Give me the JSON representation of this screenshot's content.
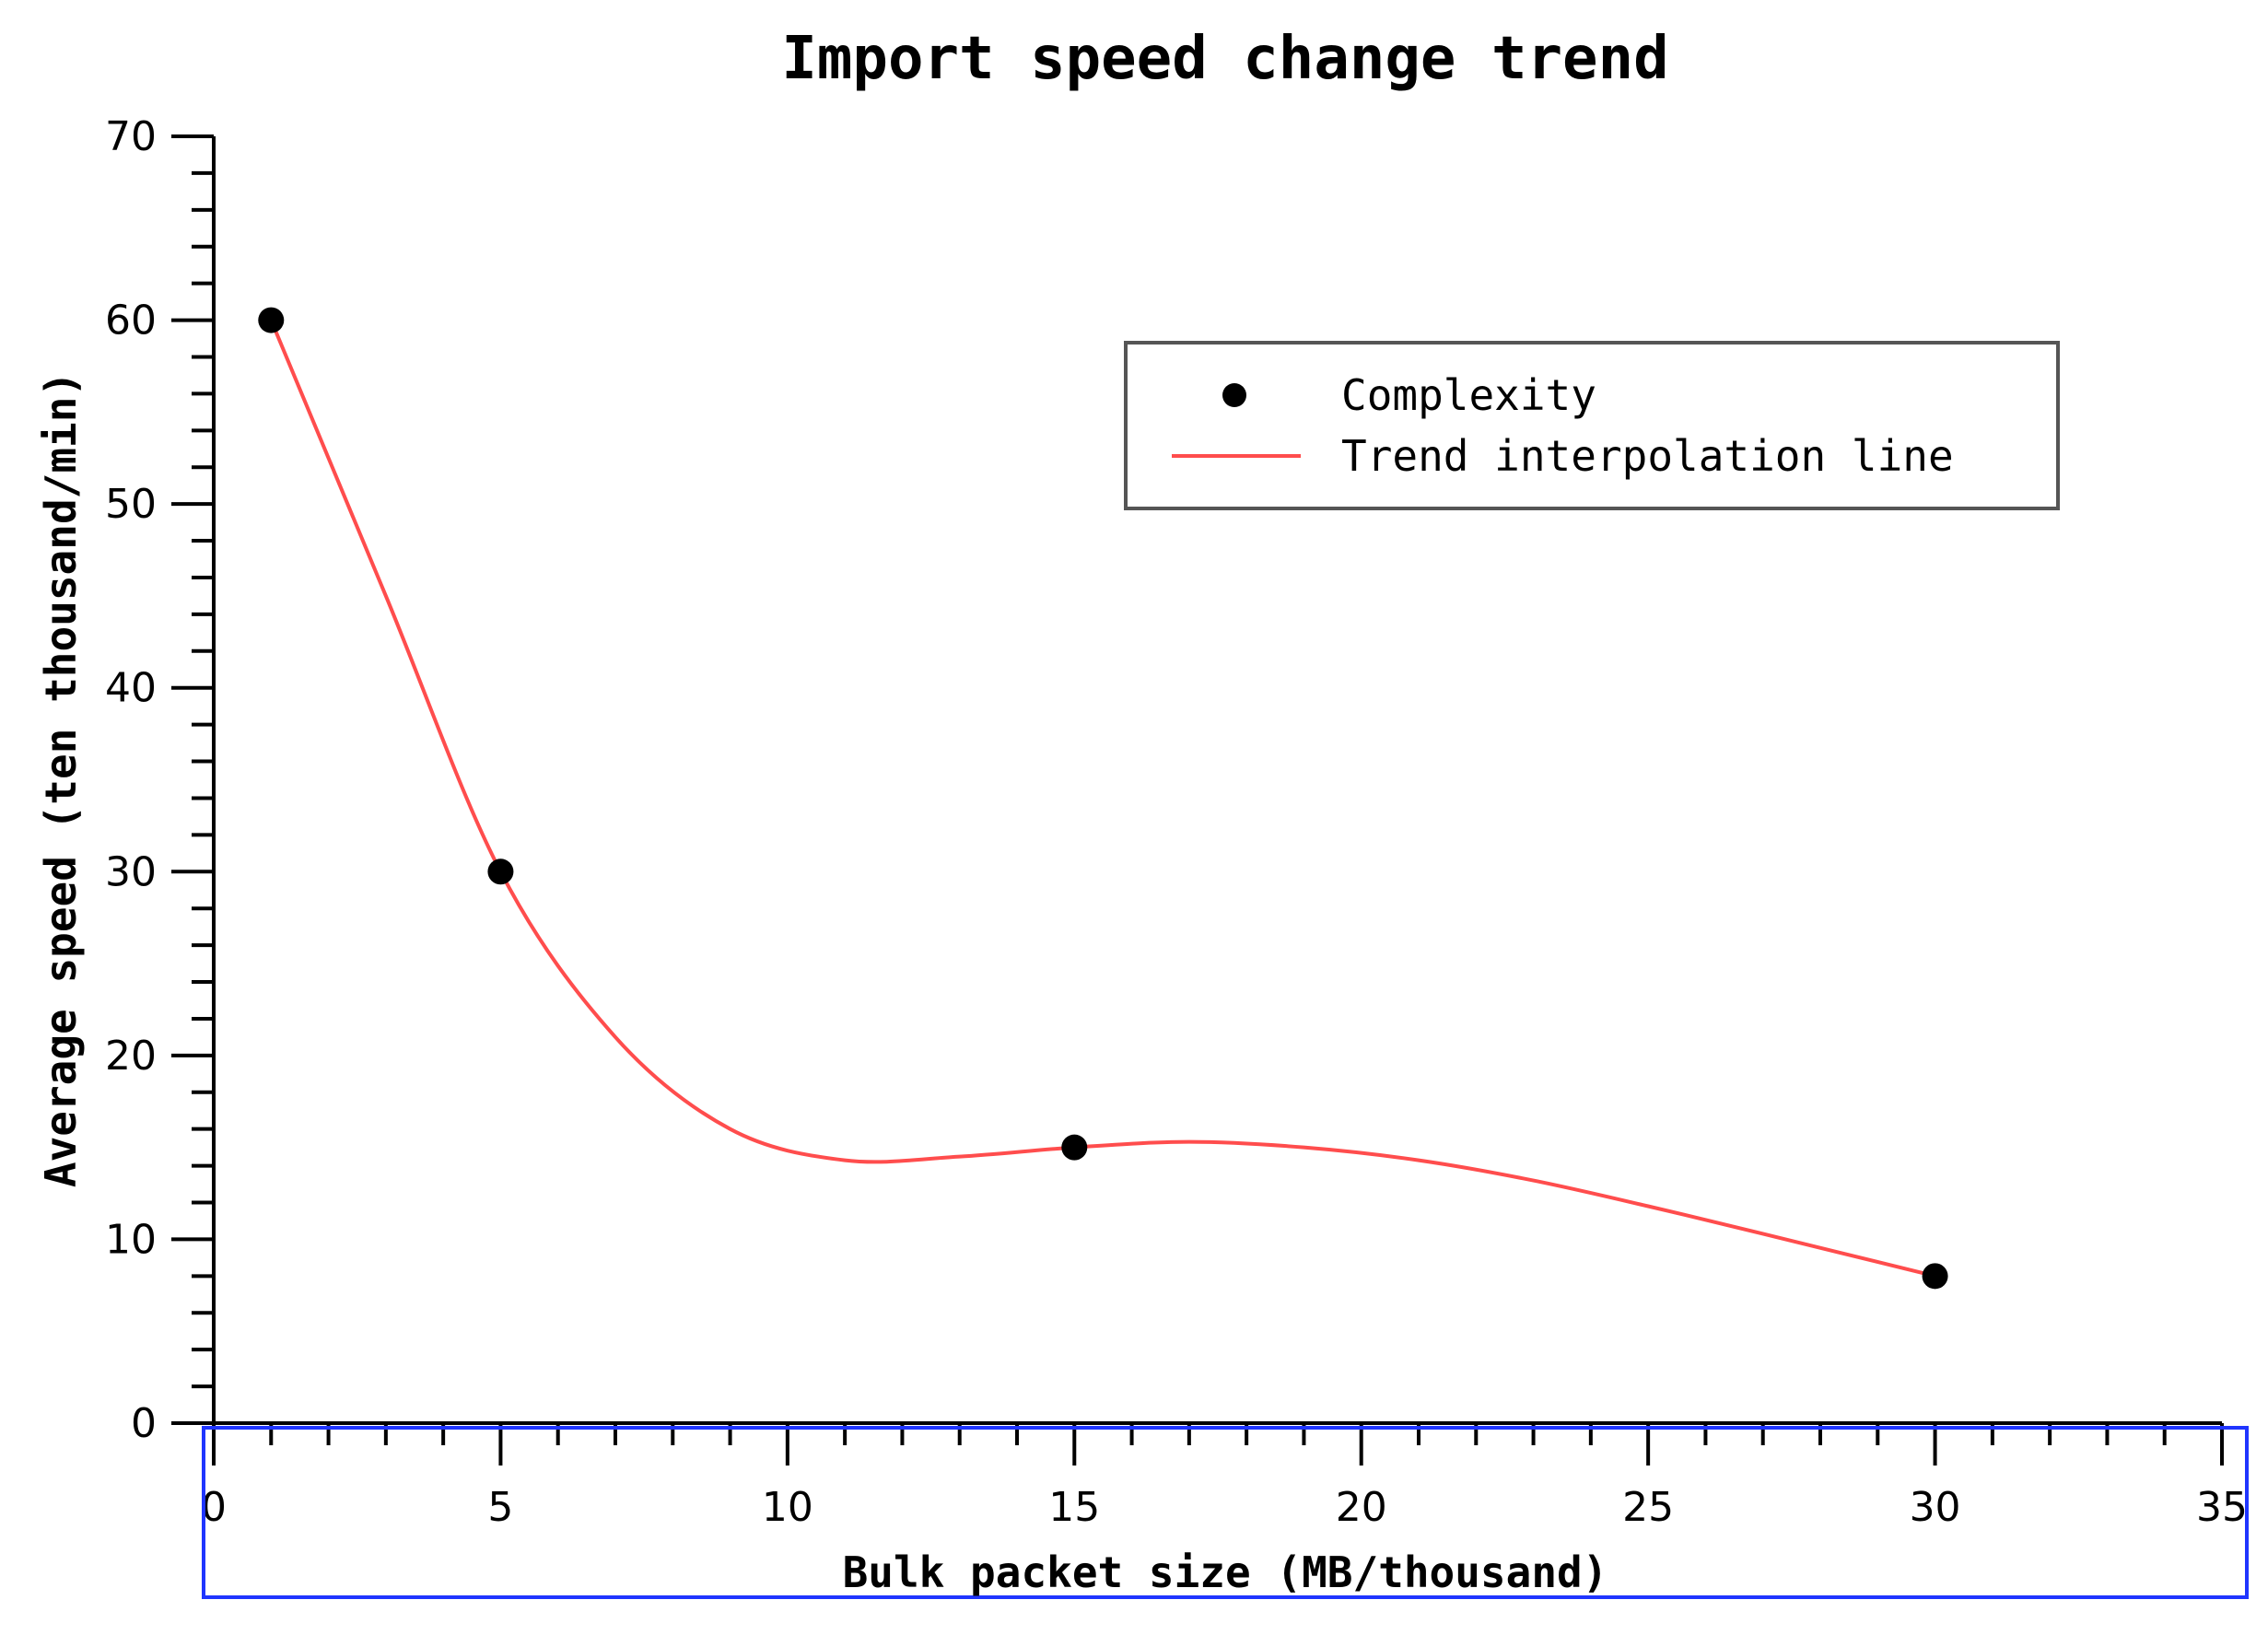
{
  "chart_data": {
    "type": "scatter",
    "title": "Import speed change trend",
    "xlabel": "Bulk packet size (MB/thousand)",
    "ylabel": "Average speed (ten thousand/min)",
    "xlim": [
      0,
      35
    ],
    "ylim": [
      0,
      70
    ],
    "x_ticks": [
      0,
      5,
      10,
      15,
      20,
      25,
      30,
      35
    ],
    "y_ticks": [
      0,
      10,
      20,
      30,
      40,
      50,
      60,
      70
    ],
    "x_tick_labels": [
      "0",
      "5",
      "10",
      "15",
      "20",
      "25",
      "30",
      "35"
    ],
    "y_tick_labels": [
      "0",
      "10",
      "20",
      "30",
      "40",
      "50",
      "60",
      "70"
    ],
    "grid": false,
    "legend": {
      "placement": "top-right",
      "entries": [
        "Complexity",
        "Trend interpolation line"
      ]
    },
    "series": [
      {
        "name": "Complexity",
        "kind": "points",
        "color": "#000000",
        "x": [
          1,
          5,
          15,
          30
        ],
        "y": [
          60,
          30,
          15,
          8
        ]
      },
      {
        "name": "Trend interpolation line",
        "kind": "line",
        "color": "#ff4d4d",
        "x": [
          1,
          3,
          5,
          7,
          9,
          11,
          13,
          15,
          17,
          19,
          21,
          23,
          25,
          27,
          30
        ],
        "y": [
          60,
          45,
          30,
          21,
          16,
          14.3,
          14.5,
          15,
          15.3,
          15,
          14.3,
          13.2,
          11.8,
          10.3,
          8
        ]
      }
    ]
  }
}
